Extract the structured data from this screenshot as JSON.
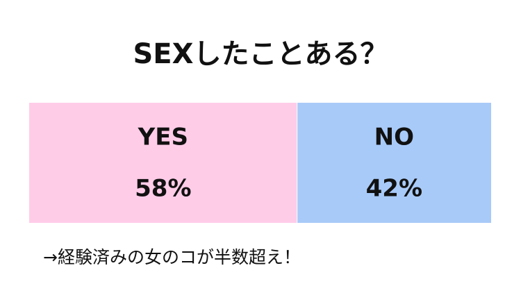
{
  "chart_data": {
    "type": "stacked-bar",
    "title": "SEXしたことある？",
    "series": [
      {
        "name": "YES",
        "color": "#ffcce8",
        "values": [
          58
        ],
        "value_labels": [
          "58%"
        ]
      },
      {
        "name": "NO",
        "color": "#a8caf8",
        "values": [
          42
        ],
        "value_labels": [
          "42%"
        ]
      }
    ],
    "annotation": "→経験済みの女のコが半数超え！"
  }
}
